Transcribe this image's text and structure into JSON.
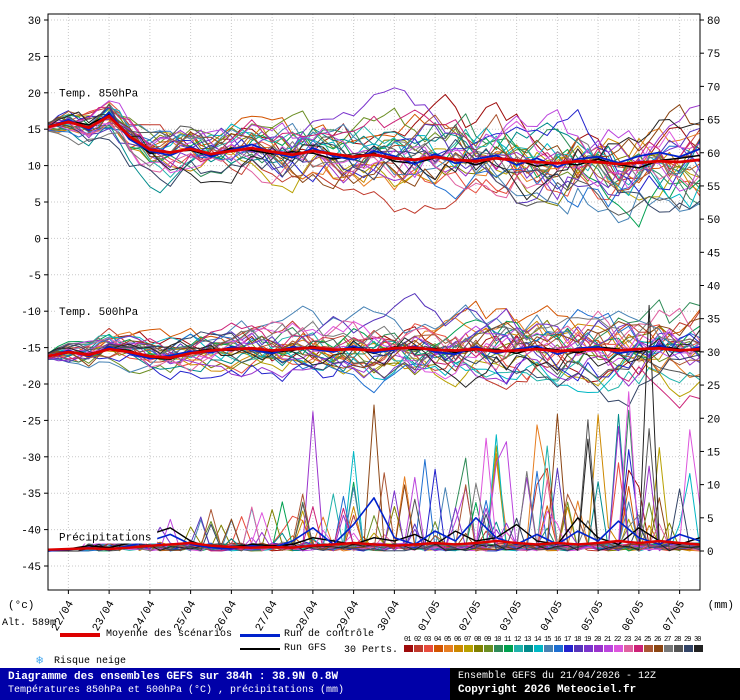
{
  "annotations": {
    "t850": "Temp. 850hPa",
    "t500": "Temp. 500hPa",
    "precip": "Précipitations"
  },
  "legend": {
    "altitude": "Alt. 589m",
    "mean": {
      "label": "Moyenne des scénarios",
      "color": "#dd0000"
    },
    "control": {
      "label": "Run de contrôle",
      "color": "#0022cc"
    },
    "gfs": {
      "label": "Run GFS",
      "color": "#000000"
    },
    "perts": {
      "label": "30 Perts.",
      "numbers": [
        "01",
        "02",
        "03",
        "04",
        "05",
        "06",
        "07",
        "08",
        "09",
        "10",
        "11",
        "12",
        "13",
        "14",
        "15",
        "16",
        "17",
        "18",
        "19",
        "20",
        "21",
        "22",
        "23",
        "24",
        "25",
        "26",
        "27",
        "28",
        "29",
        "30"
      ]
    },
    "snow": {
      "label": "Risque neige",
      "icon": "❄",
      "icon_color": "#44a8f0"
    }
  },
  "footer": {
    "title": "Diagramme des ensembles GEFS sur 384h : 38.9N 0.8W",
    "subtitle": "Températures 850hPa et 500hPa (°C) , précipitations (mm)",
    "run": "Ensemble GEFS du 21/04/2026 - 12Z",
    "copyright": "Copyright 2026 Meteociel.fr"
  },
  "chart_data": {
    "type": "line",
    "title": "Diagramme des ensembles GEFS sur 384h : 38.9N 0.8W",
    "left_unit": "(°c)",
    "right_unit": "(mm)",
    "left_axis_range": [
      -45,
      30
    ],
    "right_axis_range": [
      0,
      80
    ],
    "left_ticks": [
      30,
      25,
      20,
      15,
      10,
      5,
      0,
      -5,
      -10,
      -15,
      -20,
      -25,
      -30,
      -35,
      -40,
      -45
    ],
    "right_ticks": [
      80,
      75,
      70,
      65,
      60,
      55,
      50,
      45,
      40,
      35,
      30,
      25,
      20,
      15,
      10,
      5,
      0
    ],
    "x_dates": [
      "22/04",
      "23/04",
      "24/04",
      "25/04",
      "26/04",
      "27/04",
      "28/04",
      "29/04",
      "30/04",
      "01/05",
      "02/05",
      "03/05",
      "04/05",
      "05/05",
      "06/05",
      "07/05"
    ],
    "x_hours_start": 0,
    "x_hours_end": 384,
    "sample_interval_h": 12,
    "grid": true,
    "series": {
      "mean_850": {
        "label": "Moyenne des scénarios 850hPa",
        "color": "#dd0000",
        "width": 2.8,
        "axis": "left",
        "values": [
          15.3,
          16.0,
          15.2,
          16.8,
          14.0,
          12.2,
          11.8,
          12.3,
          11.6,
          12.0,
          12.4,
          11.9,
          11.5,
          12.0,
          11.6,
          11.2,
          11.5,
          11.0,
          10.8,
          11.2,
          10.8,
          10.6,
          11.0,
          10.7,
          10.5,
          10.3,
          10.6,
          10.5,
          10.2,
          10.4,
          10.6,
          10.5,
          10.8
        ]
      },
      "control_850": {
        "label": "Run de contrôle 850hPa",
        "color": "#0022cc",
        "width": 1.8,
        "axis": "left",
        "values": [
          15.3,
          16.3,
          14.9,
          17.3,
          13.6,
          12.0,
          11.4,
          12.6,
          11.2,
          12.2,
          12.9,
          11.8,
          11.1,
          12.4,
          11.3,
          10.8,
          12.0,
          11.3,
          10.2,
          11.6,
          10.3,
          10.9,
          11.4,
          10.1,
          11.0,
          9.8,
          10.9,
          11.2,
          10.4,
          11.3,
          11.8,
          11.2,
          12.3
        ]
      },
      "gfs_850": {
        "label": "Run GFS 850hPa",
        "color": "#000000",
        "width": 1.5,
        "axis": "left",
        "values": [
          15.3,
          16.1,
          15.6,
          17.0,
          13.9,
          11.7,
          11.9,
          12.1,
          11.3,
          12.4,
          12.1,
          11.6,
          11.9,
          11.7,
          10.9,
          11.3,
          11.7,
          10.6,
          10.3,
          11.1,
          10.9,
          10.1,
          11.1,
          10.8,
          9.9,
          10.4,
          10.1,
          10.9,
          10.1,
          9.7,
          10.7,
          11.0,
          11.4
        ]
      },
      "mean_500": {
        "label": "Moyenne des scénarios 500hPa",
        "color": "#dd0000",
        "width": 2.8,
        "axis": "left",
        "values": [
          -16.2,
          -15.6,
          -16.0,
          -15.2,
          -15.6,
          -16.2,
          -16.4,
          -15.8,
          -15.4,
          -15.2,
          -15.1,
          -15.4,
          -15.2,
          -15.0,
          -15.3,
          -15.2,
          -15.4,
          -15.1,
          -15.0,
          -15.3,
          -15.4,
          -15.2,
          -15.5,
          -15.4,
          -15.2,
          -15.5,
          -15.3,
          -15.2,
          -15.4,
          -15.2,
          -15.1,
          -15.4,
          -15.2
        ]
      },
      "control_500": {
        "label": "Run de contrôle 500hPa",
        "color": "#0022cc",
        "width": 1.8,
        "axis": "left",
        "values": [
          -16.2,
          -15.4,
          -16.2,
          -14.9,
          -15.8,
          -16.5,
          -16.1,
          -15.5,
          -15.7,
          -14.9,
          -15.3,
          -15.8,
          -14.9,
          -15.2,
          -15.6,
          -14.8,
          -15.7,
          -15.3,
          -14.8,
          -15.6,
          -15.9,
          -14.9,
          -15.8,
          -15.2,
          -14.8,
          -15.9,
          -15.1,
          -14.9,
          -15.8,
          -15.3,
          -14.7,
          -15.6,
          -14.9
        ]
      },
      "gfs_500": {
        "label": "Run GFS 500hPa",
        "color": "#000000",
        "width": 1.5,
        "axis": "left",
        "values": [
          -16.2,
          -15.7,
          -15.9,
          -15.1,
          -15.4,
          -16.4,
          -16.6,
          -15.6,
          -15.2,
          -15.4,
          -15.0,
          -15.6,
          -15.4,
          -14.8,
          -15.5,
          -15.0,
          -15.8,
          -14.9,
          -15.3,
          -15.1,
          -15.7,
          -15.3,
          -15.2,
          -15.8,
          -15.0,
          -15.3,
          -15.7,
          -14.9,
          -15.2,
          -15.6,
          -14.8,
          -15.2,
          -15.5
        ]
      },
      "mean_precip": {
        "label": "Moyenne des scénarios précipitations",
        "color": "#dd0000",
        "width": 2.4,
        "axis": "right",
        "values": [
          0.2,
          0.3,
          0.4,
          0.3,
          0.5,
          0.8,
          1.0,
          1.2,
          0.8,
          0.6,
          0.5,
          0.6,
          0.5,
          0.8,
          1.0,
          1.2,
          1.0,
          0.8,
          1.0,
          1.2,
          1.0,
          1.2,
          1.5,
          1.2,
          1.0,
          1.2,
          1.0,
          1.2,
          1.5,
          1.2,
          1.5,
          1.2,
          1.0
        ]
      },
      "control_precip": {
        "label": "Run de contrôle précipitations",
        "color": "#0022cc",
        "width": 1.6,
        "axis": "right",
        "values": [
          0,
          0.2,
          0.5,
          0.2,
          0.8,
          1.5,
          2.5,
          1.0,
          0.5,
          0.3,
          0.8,
          0.5,
          1.5,
          3.5,
          1.0,
          4.0,
          8.0,
          2.0,
          1.0,
          3.0,
          1.5,
          5.0,
          2.0,
          1.0,
          2.5,
          1.0,
          3.0,
          1.5,
          4.5,
          2.0,
          1.0,
          2.5,
          1.5
        ]
      },
      "gfs_precip": {
        "label": "Run GFS précipitations",
        "color": "#000000",
        "width": 1.4,
        "axis": "right",
        "values": [
          0,
          0.3,
          0.8,
          0.5,
          1.2,
          2.5,
          3.5,
          1.5,
          0.5,
          0.5,
          1.0,
          0.8,
          1.0,
          2.0,
          1.5,
          1.0,
          2.0,
          1.5,
          2.5,
          1.0,
          3.0,
          1.5,
          2.0,
          4.0,
          1.5,
          1.0,
          5.0,
          2.0,
          1.0,
          3.5,
          1.5,
          1.0,
          2.0
        ]
      }
    },
    "ensemble": {
      "count": 30,
      "seed": 20260421,
      "colors": [
        "#9e0b0b",
        "#c0392b",
        "#e74c3c",
        "#d35400",
        "#e67e22",
        "#cc8800",
        "#b8a000",
        "#808000",
        "#6b8e23",
        "#2e8b57",
        "#00a050",
        "#20b2aa",
        "#008b8b",
        "#00b7c4",
        "#4682b4",
        "#1e6fd0",
        "#2222cc",
        "#5533bb",
        "#7a33cc",
        "#9932cc",
        "#bb44dd",
        "#dd55dd",
        "#e060a0",
        "#cc2277",
        "#aa5533",
        "#8b4513",
        "#777777",
        "#555555",
        "#334466",
        "#222222"
      ],
      "forced_spikes": [
        {
          "member": 29,
          "t": 354,
          "v": 37
        },
        {
          "member": 19,
          "t": 156,
          "v": 21
        },
        {
          "member": 25,
          "t": 192,
          "v": 22
        },
        {
          "member": 21,
          "t": 258,
          "v": 17
        },
        {
          "member": 13,
          "t": 180,
          "v": 15
        },
        {
          "member": 4,
          "t": 288,
          "v": 19
        },
        {
          "member": 9,
          "t": 246,
          "v": 14
        }
      ]
    }
  }
}
